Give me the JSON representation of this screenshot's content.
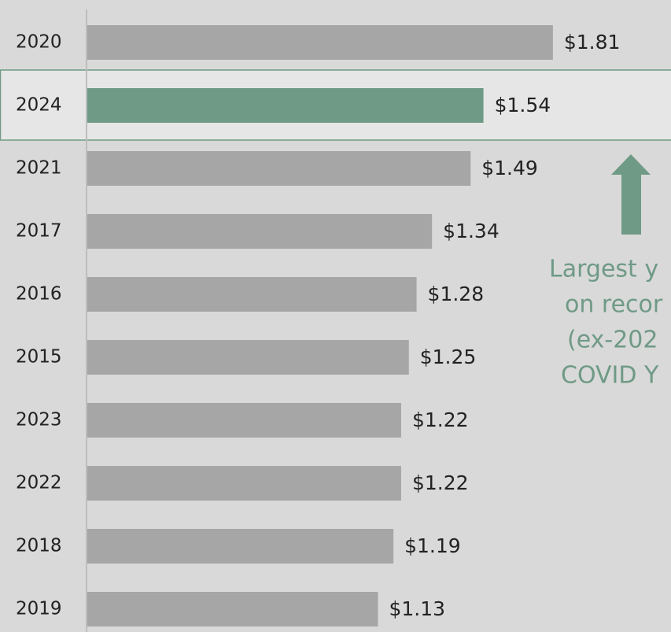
{
  "chart_data": {
    "type": "bar",
    "orientation": "horizontal",
    "categories": [
      "2020",
      "2024",
      "2021",
      "2017",
      "2016",
      "2015",
      "2023",
      "2022",
      "2018",
      "2019"
    ],
    "values": [
      1.81,
      1.54,
      1.49,
      1.34,
      1.28,
      1.25,
      1.22,
      1.22,
      1.19,
      1.13
    ],
    "value_labels": [
      "$1.81",
      "$1.54",
      "$1.49",
      "$1.34",
      "$1.28",
      "$1.25",
      "$1.22",
      "$1.22",
      "$1.19",
      "$1.13"
    ],
    "colors": [
      "#a6a6a6",
      "#6f9a86",
      "#a6a6a6",
      "#a6a6a6",
      "#a6a6a6",
      "#a6a6a6",
      "#a6a6a6",
      "#a6a6a6",
      "#a6a6a6",
      "#a6a6a6"
    ],
    "annotation": [
      "Largest y",
      "on recor",
      "(ex-202",
      "COVID Y"
    ]
  }
}
